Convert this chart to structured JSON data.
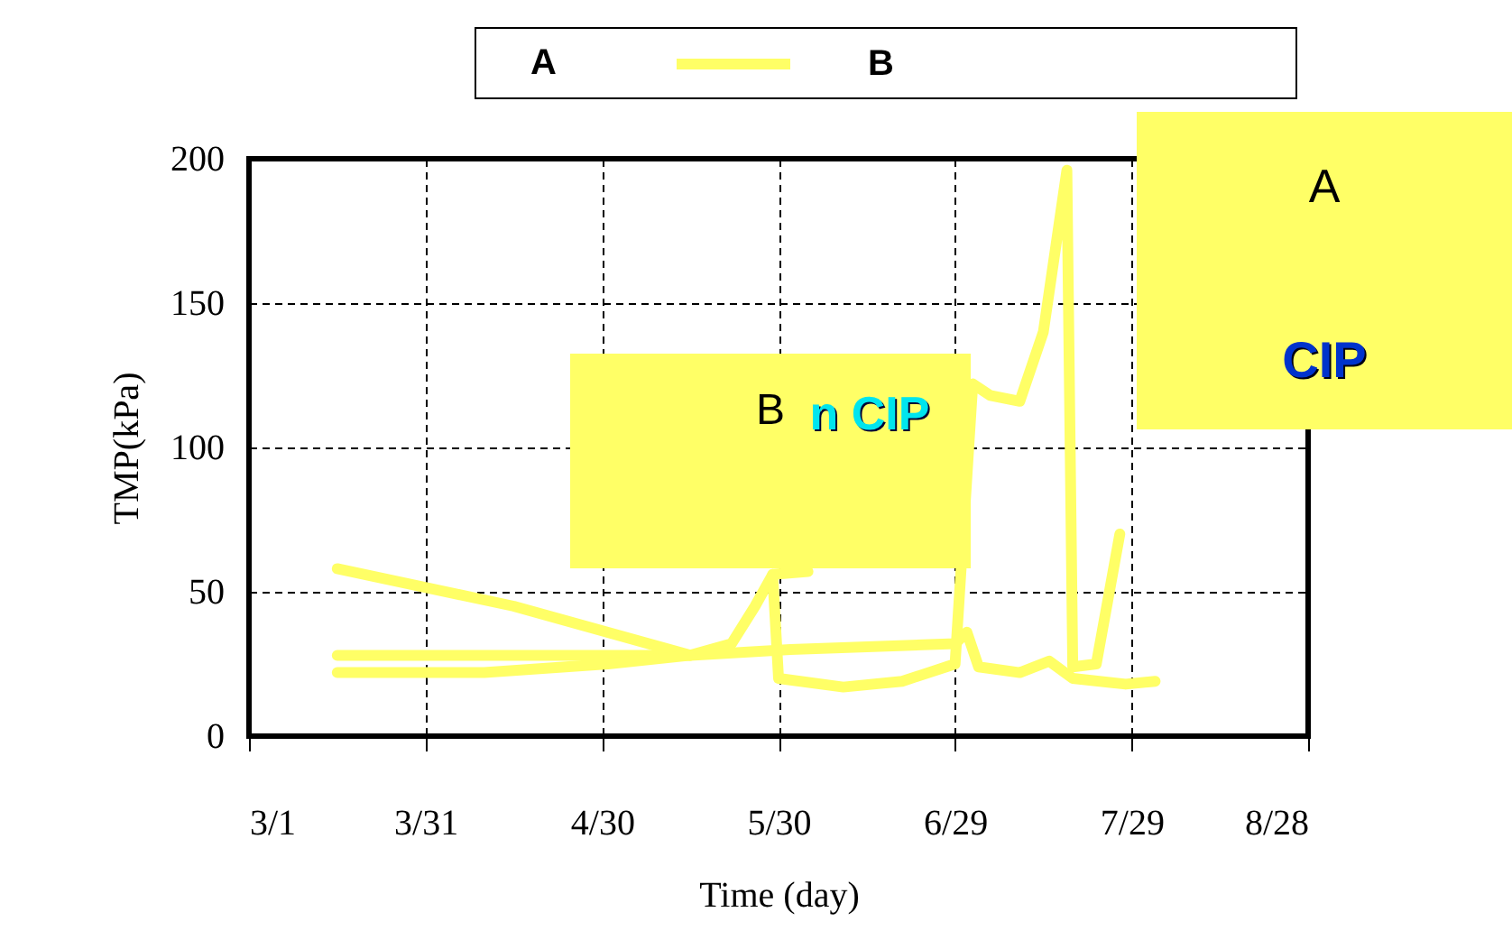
{
  "chart_data": {
    "type": "line",
    "xlabel": "Time (day)",
    "ylabel": "TMP(kPa)",
    "annotations": [
      "A",
      "B",
      "n CIP",
      "A",
      "CIP"
    ],
    "xlim": [
      "--03-01",
      "--08-28"
    ],
    "xticks": [
      {
        "value": "--03-01",
        "label": "3/1"
      },
      {
        "value": "--03-31",
        "label": "3/31"
      },
      {
        "value": "--04-30",
        "label": "4/30"
      },
      {
        "value": "--05-30",
        "label": "5/30"
      },
      {
        "value": "--06-29",
        "label": "6/29"
      },
      {
        "value": "--07-29",
        "label": "7/29"
      },
      {
        "value": "--08-28",
        "label": "8/28"
      }
    ],
    "ylim": [
      0,
      200
    ],
    "yticks": [
      0,
      50,
      100,
      150,
      200
    ],
    "grid": true,
    "line_style": "solid",
    "legend": "top",
    "series": [
      {
        "name": "B",
        "color": "#ffff66",
        "x": [
          "--03-16",
          "--04-15",
          "--05-15",
          "--05-22",
          "--05-26",
          "--05-29",
          "--06-04"
        ],
        "values": [
          58,
          45,
          28,
          32,
          45,
          56,
          57
        ]
      },
      {
        "color": "#ffff66",
        "x": [
          "--05-29",
          "--05-30",
          "--06-10",
          "--06-20",
          "--06-29",
          "--07-02",
          "--07-05",
          "--07-10",
          "--07-14",
          "--07-18",
          "--07-19",
          "--07-23",
          "--07-27"
        ],
        "values": [
          56,
          20,
          17,
          19,
          25,
          122,
          118,
          116,
          140,
          196,
          24,
          25,
          70
        ]
      },
      {
        "color": "#ffff66",
        "x": [
          "--03-16",
          "--04-15",
          "--05-15",
          "--06-01",
          "--06-29",
          "--07-01",
          "--07-03",
          "--07-10",
          "--07-15",
          "--07-19",
          "--07-28",
          "--08-02"
        ],
        "values": [
          28,
          28,
          28,
          30,
          32,
          36,
          24,
          22,
          26,
          20,
          18,
          19
        ]
      },
      {
        "color": "#ffff66",
        "x": [
          "--03-16",
          "--04-10",
          "--05-01",
          "--05-15"
        ],
        "values": [
          22,
          22,
          25,
          28
        ]
      }
    ]
  }
}
